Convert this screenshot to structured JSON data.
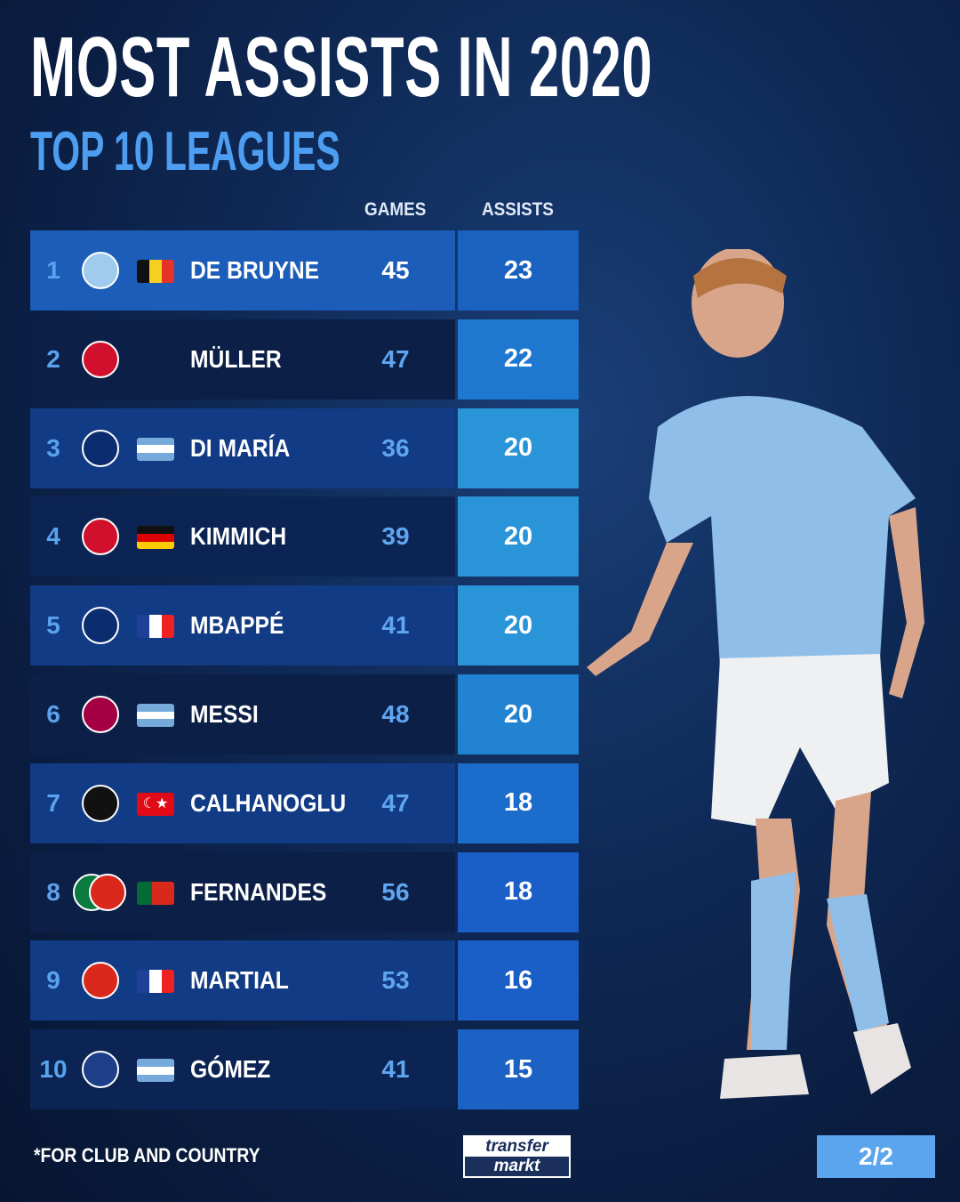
{
  "header": {
    "title": "MOST ASSISTS IN 2020",
    "subtitle": "TOP 10 LEAGUES"
  },
  "chart_data": {
    "type": "table",
    "title": "MOST ASSISTS IN 2020",
    "subtitle": "TOP 10 LEAGUES",
    "columns": [
      "GAMES",
      "ASSISTS"
    ],
    "rows": [
      {
        "rank": "1",
        "club": "Manchester City",
        "flag": "belgium",
        "name": "DE BRUYNE",
        "games": "45",
        "assists": "23"
      },
      {
        "rank": "2",
        "club": "Bayern Munich",
        "flag": "",
        "name": "MÜLLER",
        "games": "47",
        "assists": "22"
      },
      {
        "rank": "3",
        "club": "Paris Saint-Germain",
        "flag": "argentina",
        "name": "DI MARÍA",
        "games": "36",
        "assists": "20"
      },
      {
        "rank": "4",
        "club": "Bayern Munich",
        "flag": "germany",
        "name": "KIMMICH",
        "games": "39",
        "assists": "20"
      },
      {
        "rank": "5",
        "club": "Paris Saint-Germain",
        "flag": "france",
        "name": "MBAPPÉ",
        "games": "41",
        "assists": "20"
      },
      {
        "rank": "6",
        "club": "FC Barcelona",
        "flag": "argentina",
        "name": "MESSI",
        "games": "48",
        "assists": "20"
      },
      {
        "rank": "7",
        "club": "AC Milan",
        "flag": "turkey",
        "name": "CALHANOGLU",
        "games": "47",
        "assists": "18"
      },
      {
        "rank": "8",
        "club": "Sporting CP / Manchester United",
        "flag": "portugal",
        "name": "FERNANDES",
        "games": "56",
        "assists": "18"
      },
      {
        "rank": "9",
        "club": "Manchester United",
        "flag": "france",
        "name": "MARTIAL",
        "games": "53",
        "assists": "16"
      },
      {
        "rank": "10",
        "club": "Atalanta",
        "flag": "argentina",
        "name": "GÓMEZ",
        "games": "41",
        "assists": "15"
      }
    ]
  },
  "footer": {
    "note": "*FOR CLUB AND COUNTRY",
    "logo_top": "transfer",
    "logo_bottom": "markt",
    "page": "2/2"
  },
  "colors": {
    "background": "#0f2a57",
    "accent": "#4d9df0",
    "row_highlight": "#1b5db8"
  }
}
